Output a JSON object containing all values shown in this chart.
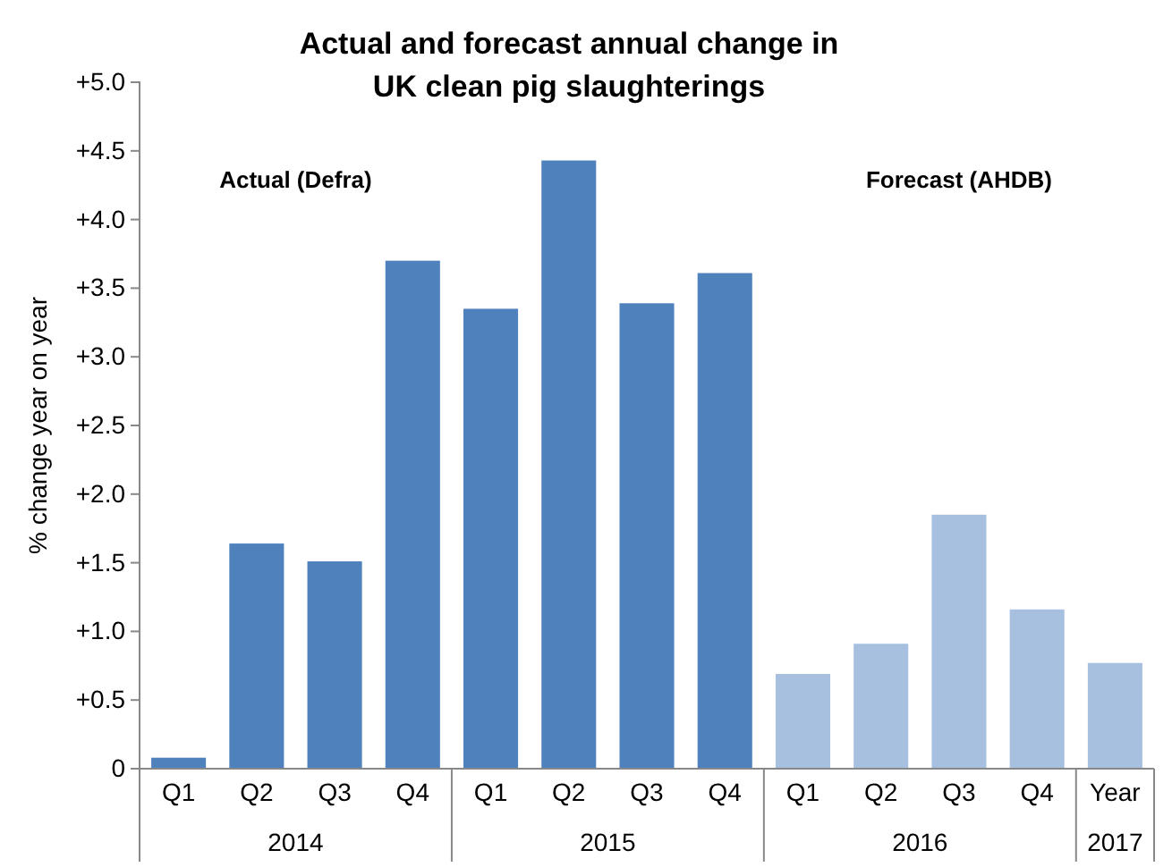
{
  "chart_data": {
    "type": "bar",
    "title": "Actual and forecast annual change in UK clean pig slaughterings",
    "ylabel": "% change year on year",
    "categories": [
      "Q1",
      "Q2",
      "Q3",
      "Q4",
      "Q1",
      "Q2",
      "Q3",
      "Q4",
      "Q1",
      "Q2",
      "Q3",
      "Q4",
      "Year"
    ],
    "values": [
      0.08,
      1.64,
      1.51,
      3.7,
      3.35,
      4.43,
      3.39,
      3.61,
      0.69,
      0.91,
      1.85,
      1.16,
      0.77
    ],
    "colors": [
      "#4f81bd",
      "#4f81bd",
      "#4f81bd",
      "#4f81bd",
      "#4f81bd",
      "#4f81bd",
      "#4f81bd",
      "#4f81bd",
      "#a7c0e0",
      "#a7c0e0",
      "#a7c0e0",
      "#a7c0e0",
      "#a7c0e0"
    ],
    "ylim": [
      0,
      5
    ],
    "yticks": [
      {
        "value": 0,
        "label": "0"
      },
      {
        "value": 0.5,
        "label": "+0.5"
      },
      {
        "value": 1,
        "label": "+1.0"
      },
      {
        "value": 1.5,
        "label": "+1.5"
      },
      {
        "value": 2,
        "label": "+2.0"
      },
      {
        "value": 2.5,
        "label": "+2.5"
      },
      {
        "value": 3,
        "label": "+3.0"
      },
      {
        "value": 3.5,
        "label": "+3.5"
      },
      {
        "value": 4,
        "label": "+4.0"
      },
      {
        "value": 4.5,
        "label": "+4.5"
      },
      {
        "value": 5,
        "label": "+5.0"
      }
    ],
    "annotations": [
      "Actual (Defra)",
      "Forecast (AHDB)",
      "2014",
      "2015",
      "2016",
      "2017"
    ],
    "grid": false
  }
}
